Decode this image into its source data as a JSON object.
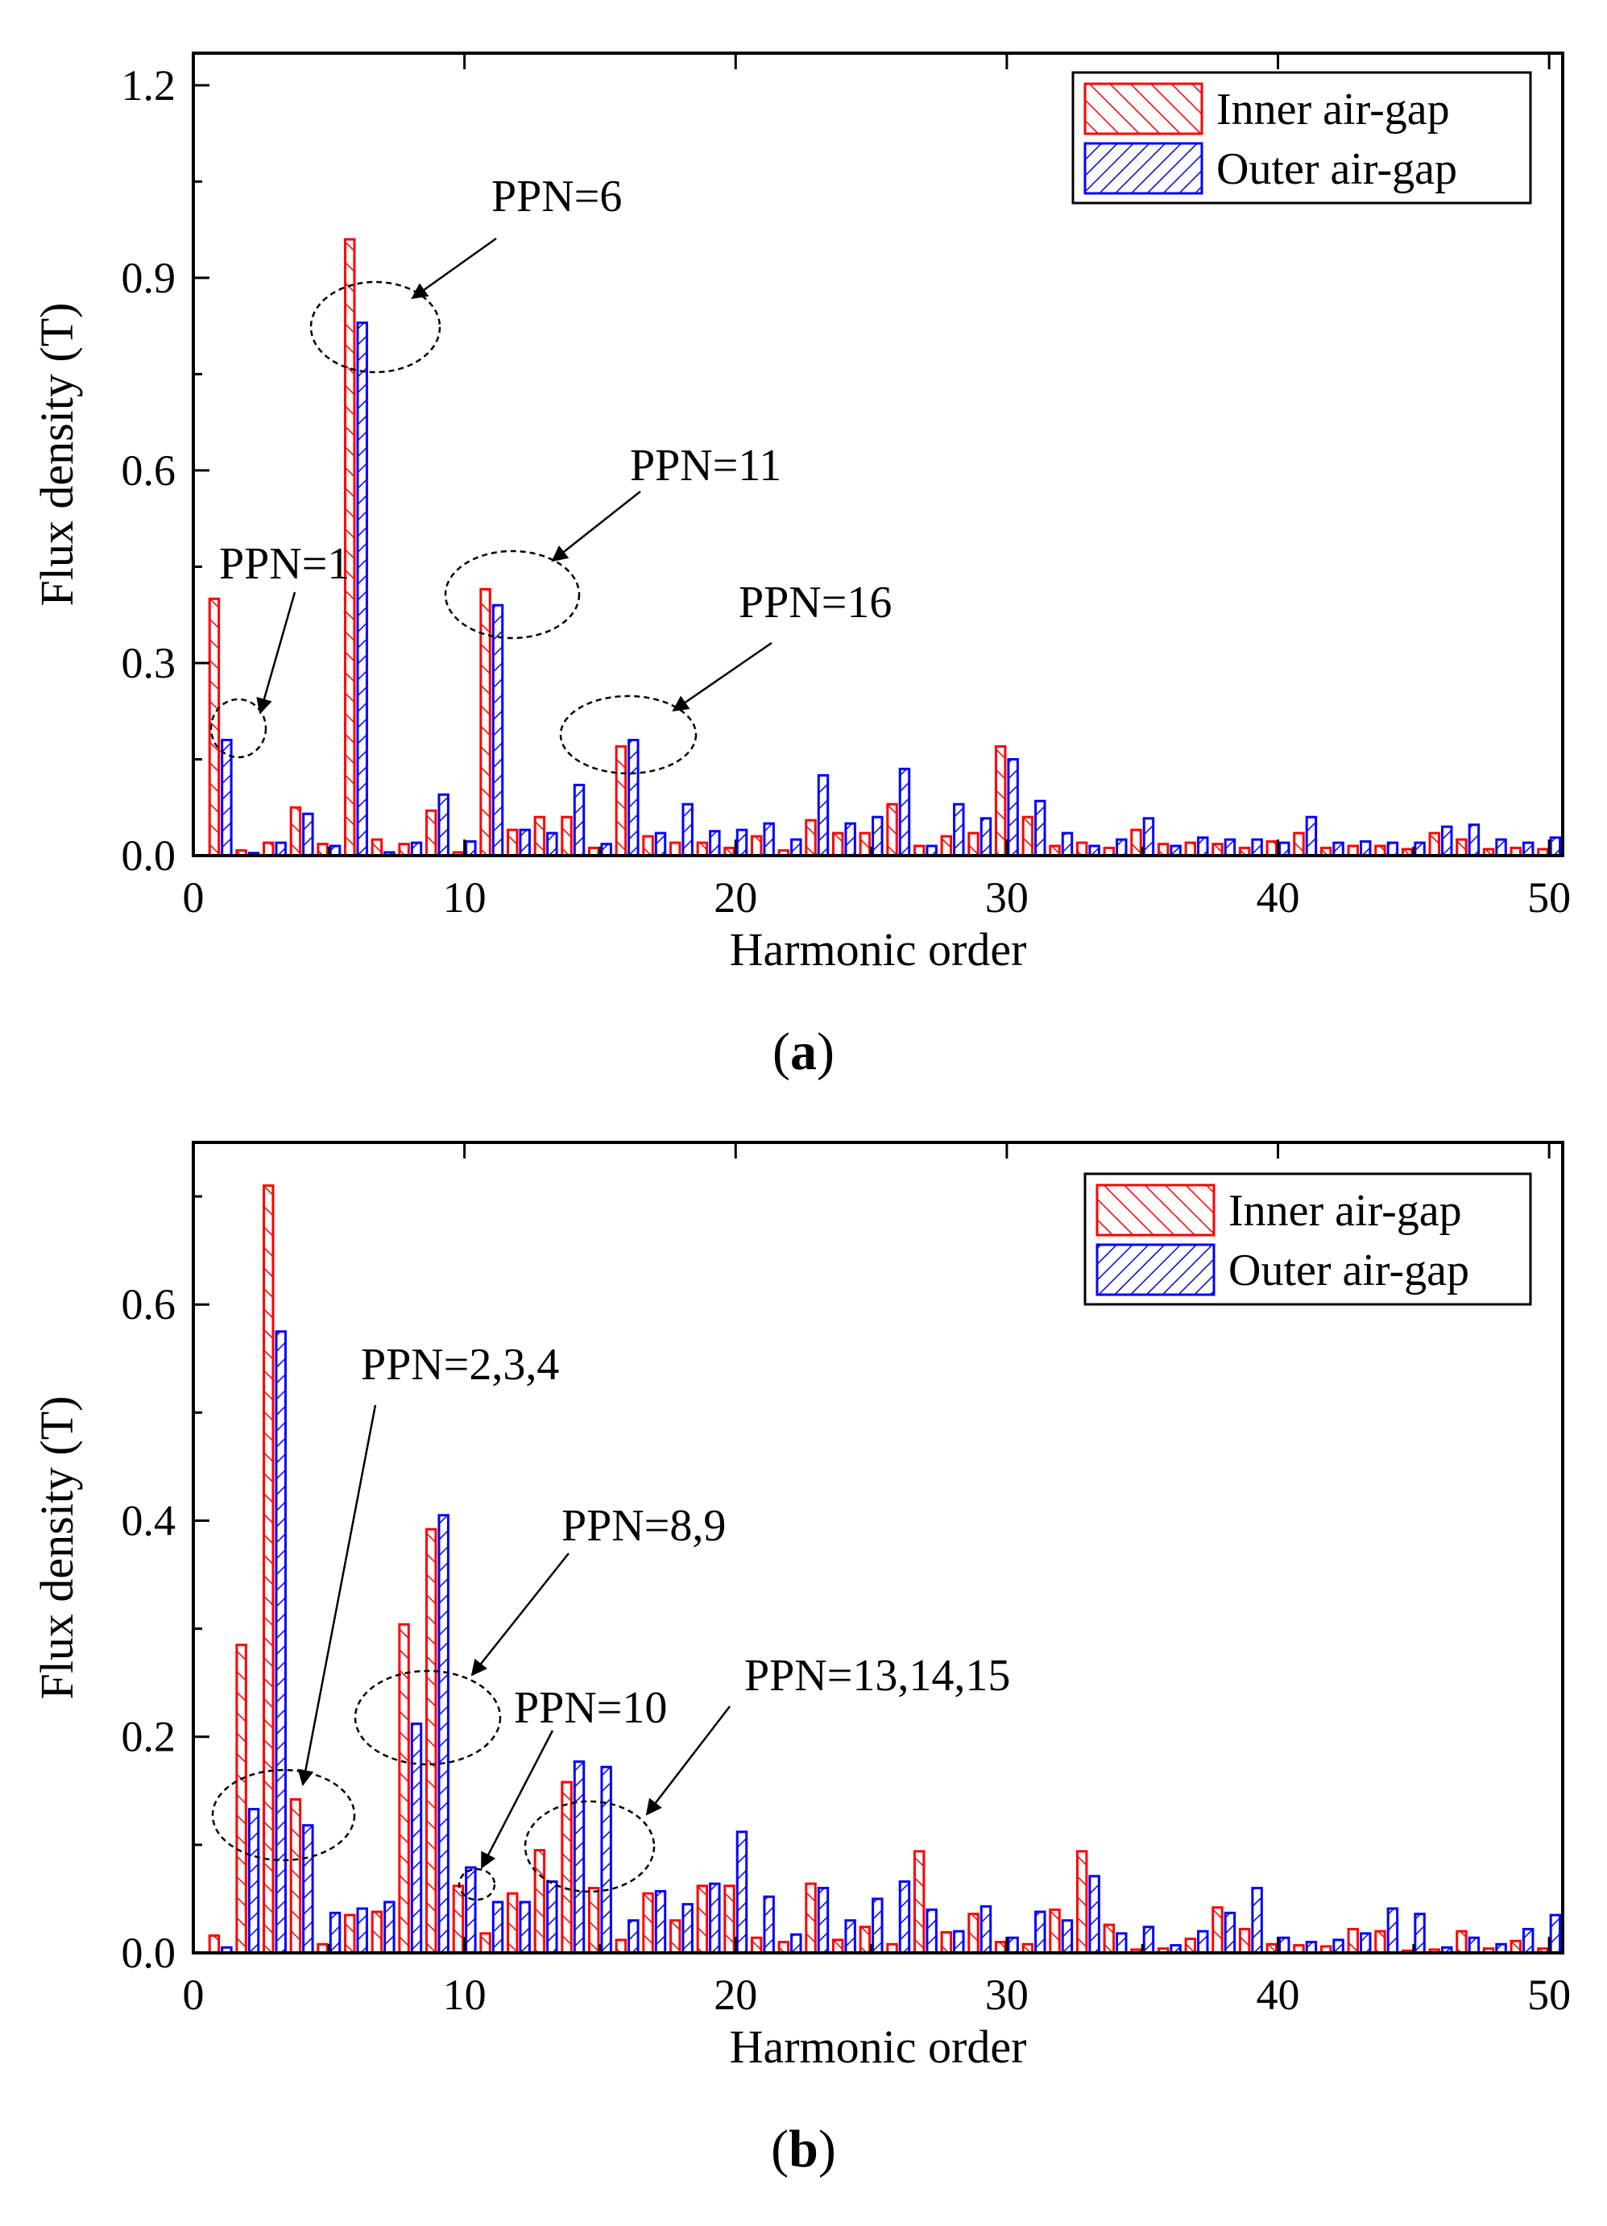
{
  "chart_data": [
    {
      "type": "bar",
      "panel_label": "a",
      "xlabel": "Harmonic order",
      "ylabel": "Flux density (T)",
      "xlim": [
        0,
        50.5
      ],
      "ylim": [
        0,
        1.25
      ],
      "xticks": [
        0,
        10,
        20,
        30,
        40,
        50
      ],
      "yticks": [
        0.0,
        0.3,
        0.6,
        0.9,
        1.2
      ],
      "ytick_labels": [
        "0.0",
        "0.3",
        "0.6",
        "0.9",
        "1.2"
      ],
      "legend_position": "top-right",
      "harmonics": [
        1,
        2,
        3,
        4,
        5,
        6,
        7,
        8,
        9,
        10,
        11,
        12,
        13,
        14,
        15,
        16,
        17,
        18,
        19,
        20,
        21,
        22,
        23,
        24,
        25,
        26,
        27,
        28,
        29,
        30,
        31,
        32,
        33,
        34,
        35,
        36,
        37,
        38,
        39,
        40,
        41,
        42,
        43,
        44,
        45,
        46,
        47,
        48,
        49,
        50
      ],
      "series": [
        {
          "name": "Inner air-gap",
          "color": "#ff0000",
          "values": [
            0.4,
            0.008,
            0.02,
            0.075,
            0.018,
            0.96,
            0.025,
            0.018,
            0.07,
            0.005,
            0.415,
            0.04,
            0.06,
            0.06,
            0.012,
            0.17,
            0.03,
            0.02,
            0.02,
            0.012,
            0.03,
            0.008,
            0.055,
            0.035,
            0.035,
            0.08,
            0.015,
            0.03,
            0.035,
            0.17,
            0.06,
            0.015,
            0.02,
            0.012,
            0.04,
            0.018,
            0.02,
            0.018,
            0.012,
            0.022,
            0.035,
            0.012,
            0.015,
            0.015,
            0.01,
            0.035,
            0.025,
            0.01,
            0.012,
            0.01
          ]
        },
        {
          "name": "Outer air-gap",
          "color": "#0000ff",
          "values": [
            0.18,
            0.004,
            0.02,
            0.065,
            0.015,
            0.83,
            0.005,
            0.02,
            0.095,
            0.022,
            0.39,
            0.04,
            0.035,
            0.11,
            0.018,
            0.18,
            0.035,
            0.08,
            0.038,
            0.04,
            0.05,
            0.025,
            0.125,
            0.05,
            0.06,
            0.135,
            0.015,
            0.08,
            0.058,
            0.15,
            0.085,
            0.035,
            0.015,
            0.025,
            0.058,
            0.015,
            0.028,
            0.025,
            0.025,
            0.02,
            0.06,
            0.02,
            0.022,
            0.02,
            0.02,
            0.045,
            0.048,
            0.025,
            0.02,
            0.028
          ]
        }
      ],
      "annotations": [
        {
          "text": "PPN=1",
          "x": 1,
          "y": 0.2
        },
        {
          "text": "PPN=6",
          "x": 6,
          "y": 0.82
        },
        {
          "text": "PPN=11",
          "x": 11,
          "y": 0.41
        },
        {
          "text": "PPN=16",
          "x": 16,
          "y": 0.18
        }
      ]
    },
    {
      "type": "bar",
      "panel_label": "b",
      "xlabel": "Harmonic order",
      "ylabel": "Flux density (T)",
      "xlim": [
        0,
        50.5
      ],
      "ylim": [
        0,
        0.75
      ],
      "xticks": [
        0,
        10,
        20,
        30,
        40,
        50
      ],
      "yticks": [
        0.0,
        0.2,
        0.4,
        0.6
      ],
      "ytick_labels": [
        "0.0",
        "0.2",
        "0.4",
        "0.6"
      ],
      "legend_position": "top-right",
      "harmonics": [
        1,
        2,
        3,
        4,
        5,
        6,
        7,
        8,
        9,
        10,
        11,
        12,
        13,
        14,
        15,
        16,
        17,
        18,
        19,
        20,
        21,
        22,
        23,
        24,
        25,
        26,
        27,
        28,
        29,
        30,
        31,
        32,
        33,
        34,
        35,
        36,
        37,
        38,
        39,
        40,
        41,
        42,
        43,
        44,
        45,
        46,
        47,
        48,
        49,
        50
      ],
      "series": [
        {
          "name": "Inner air-gap",
          "color": "#ff0000",
          "values": [
            0.016,
            0.285,
            0.71,
            0.142,
            0.008,
            0.035,
            0.038,
            0.304,
            0.392,
            0.062,
            0.018,
            0.055,
            0.095,
            0.158,
            0.06,
            0.012,
            0.055,
            0.03,
            0.062,
            0.062,
            0.014,
            0.01,
            0.064,
            0.012,
            0.024,
            0.008,
            0.094,
            0.019,
            0.036,
            0.01,
            0.008,
            0.04,
            0.094,
            0.026,
            0.003,
            0.004,
            0.013,
            0.042,
            0.022,
            0.008,
            0.007,
            0.006,
            0.022,
            0.02,
            0.002,
            0.003,
            0.02,
            0.004,
            0.011,
            0.004
          ]
        },
        {
          "name": "Outer air-gap",
          "color": "#0000ff",
          "values": [
            0.005,
            0.133,
            0.575,
            0.118,
            0.037,
            0.041,
            0.047,
            0.212,
            0.405,
            0.079,
            0.047,
            0.047,
            0.066,
            0.177,
            0.172,
            0.03,
            0.057,
            0.045,
            0.064,
            0.112,
            0.052,
            0.017,
            0.06,
            0.03,
            0.05,
            0.066,
            0.04,
            0.02,
            0.043,
            0.014,
            0.038,
            0.03,
            0.071,
            0.018,
            0.024,
            0.007,
            0.02,
            0.037,
            0.06,
            0.014,
            0.01,
            0.012,
            0.018,
            0.041,
            0.036,
            0.005,
            0.014,
            0.008,
            0.022,
            0.035
          ]
        }
      ],
      "annotations": [
        {
          "text": "PPN=2,3,4",
          "x": 3,
          "y": 0.12
        },
        {
          "text": "PPN=8,9",
          "x": 8.5,
          "y": 0.21
        },
        {
          "text": "PPN=10",
          "x": 10.5,
          "y": 0.06
        },
        {
          "text": "PPN=13,14,15",
          "x": 14.5,
          "y": 0.1
        }
      ]
    }
  ]
}
